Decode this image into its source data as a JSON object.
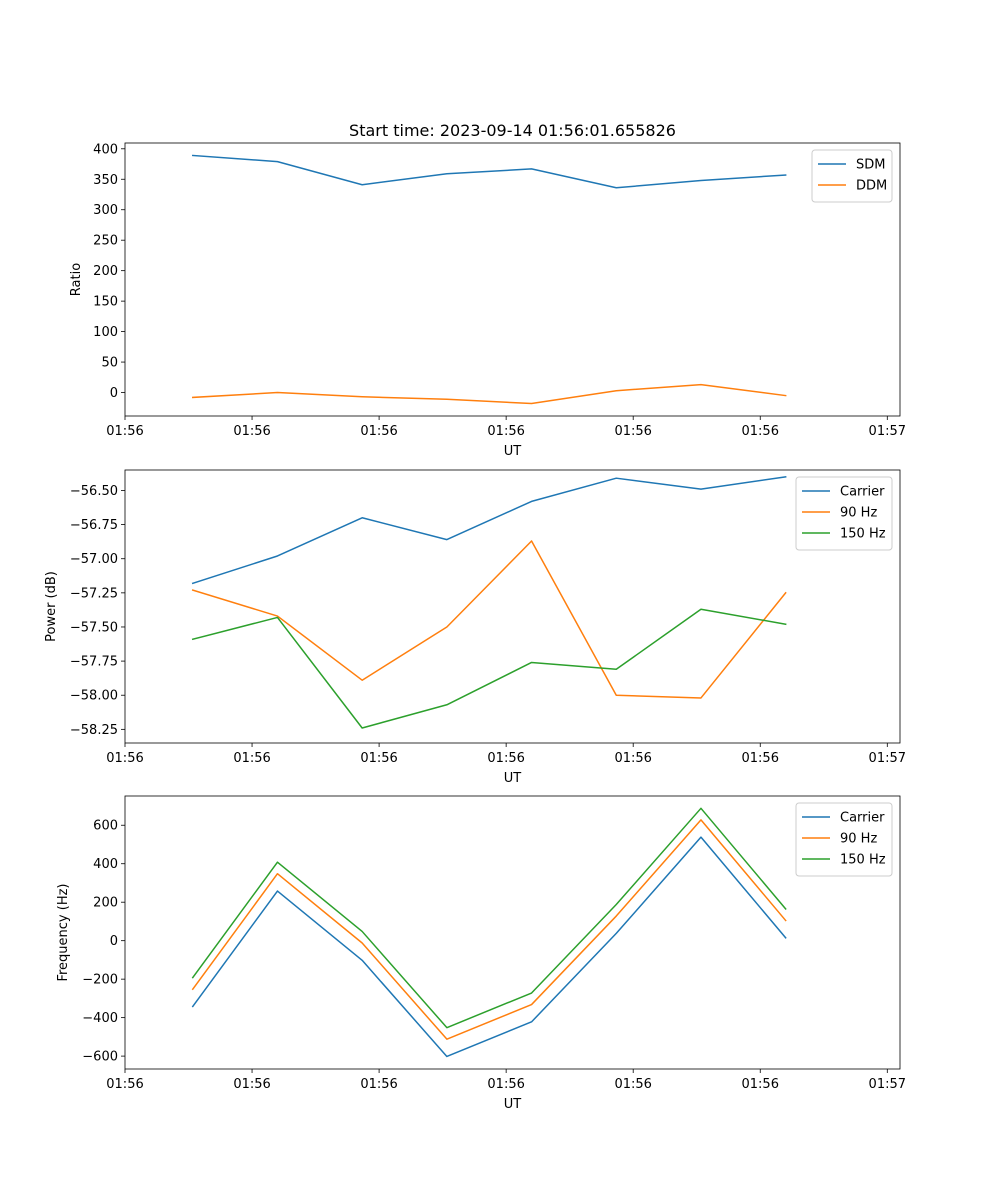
{
  "figure": {
    "title": "Start time: 2023-09-14 01:56:01.655826"
  },
  "chart_data": [
    {
      "type": "line",
      "title": "Start time: 2023-09-14 01:56:01.655826",
      "xlabel": "UT",
      "ylabel": "Ratio",
      "x": [
        1,
        2,
        3,
        4,
        5,
        6,
        7,
        8
      ],
      "xlim": [
        0.2,
        9.35
      ],
      "xticks": [
        0.2,
        1.7,
        3.2,
        4.7,
        6.2,
        7.7,
        9.2
      ],
      "xtick_labels": [
        "01:56",
        "01:56",
        "01:56",
        "01:56",
        "01:56",
        "01:56",
        "01:57"
      ],
      "ylim": [
        -38.5,
        409.5
      ],
      "yticks": [
        0,
        50,
        100,
        150,
        200,
        250,
        300,
        350,
        400
      ],
      "ytick_labels": [
        "0",
        "50",
        "100",
        "150",
        "200",
        "250",
        "300",
        "350",
        "400"
      ],
      "legend_position": "top-right",
      "series": [
        {
          "name": "SDM",
          "color": "#1f77b4",
          "values": [
            389,
            379,
            341,
            359,
            367,
            336,
            348,
            357
          ]
        },
        {
          "name": "DDM",
          "color": "#ff7f0e",
          "values": [
            -8,
            0,
            -7,
            -11,
            -18,
            3,
            13,
            -5
          ]
        }
      ]
    },
    {
      "type": "line",
      "title": "",
      "xlabel": "UT",
      "ylabel": "Power (dB)",
      "x": [
        1,
        2,
        3,
        4,
        5,
        6,
        7,
        8
      ],
      "xlim": [
        0.2,
        9.35
      ],
      "xticks": [
        0.2,
        1.7,
        3.2,
        4.7,
        6.2,
        7.7,
        9.2
      ],
      "xtick_labels": [
        "01:56",
        "01:56",
        "01:56",
        "01:56",
        "01:56",
        "01:56",
        "01:57"
      ],
      "ylim": [
        -58.35,
        -56.35
      ],
      "yticks": [
        -58.25,
        -58.0,
        -57.75,
        -57.5,
        -57.25,
        -57.0,
        -56.75,
        -56.5
      ],
      "ytick_labels": [
        "−58.25",
        "−58.00",
        "−57.75",
        "−57.50",
        "−57.25",
        "−57.00",
        "−56.75",
        "−56.50"
      ],
      "legend_position": "top-right",
      "series": [
        {
          "name": "Carrier",
          "color": "#1f77b4",
          "values": [
            -57.18,
            -56.98,
            -56.7,
            -56.86,
            -56.58,
            -56.41,
            -56.49,
            -56.4
          ]
        },
        {
          "name": "90 Hz",
          "color": "#ff7f0e",
          "values": [
            -57.23,
            -57.42,
            -57.89,
            -57.5,
            -56.87,
            -58.0,
            -58.02,
            -57.25
          ]
        },
        {
          "name": "150 Hz",
          "color": "#2ca02c",
          "values": [
            -57.59,
            -57.43,
            -58.24,
            -58.07,
            -57.76,
            -57.81,
            -57.37,
            -57.48
          ]
        }
      ]
    },
    {
      "type": "line",
      "title": "",
      "xlabel": "UT",
      "ylabel": "Frequency (Hz)",
      "x": [
        1,
        2,
        3,
        4,
        5,
        6,
        7,
        8
      ],
      "xlim": [
        0.2,
        9.35
      ],
      "xticks": [
        0.2,
        1.7,
        3.2,
        4.7,
        6.2,
        7.7,
        9.2
      ],
      "xtick_labels": [
        "01:56",
        "01:56",
        "01:56",
        "01:56",
        "01:56",
        "01:56",
        "01:57"
      ],
      "ylim": [
        -667,
        752
      ],
      "yticks": [
        -600,
        -400,
        -200,
        0,
        200,
        400,
        600
      ],
      "ytick_labels": [
        "−600",
        "−400",
        "−200",
        "0",
        "200",
        "400",
        "600"
      ],
      "legend_position": "top-right",
      "series": [
        {
          "name": "Carrier",
          "color": "#1f77b4",
          "values": [
            -342,
            258,
            -102,
            -602,
            -422,
            38,
            538,
            15
          ]
        },
        {
          "name": "90 Hz",
          "color": "#ff7f0e",
          "values": [
            -252,
            348,
            -12,
            -512,
            -332,
            128,
            628,
            105
          ]
        },
        {
          "name": "150 Hz",
          "color": "#2ca02c",
          "values": [
            -192,
            408,
            48,
            -452,
            -272,
            188,
            688,
            165
          ]
        }
      ]
    }
  ]
}
